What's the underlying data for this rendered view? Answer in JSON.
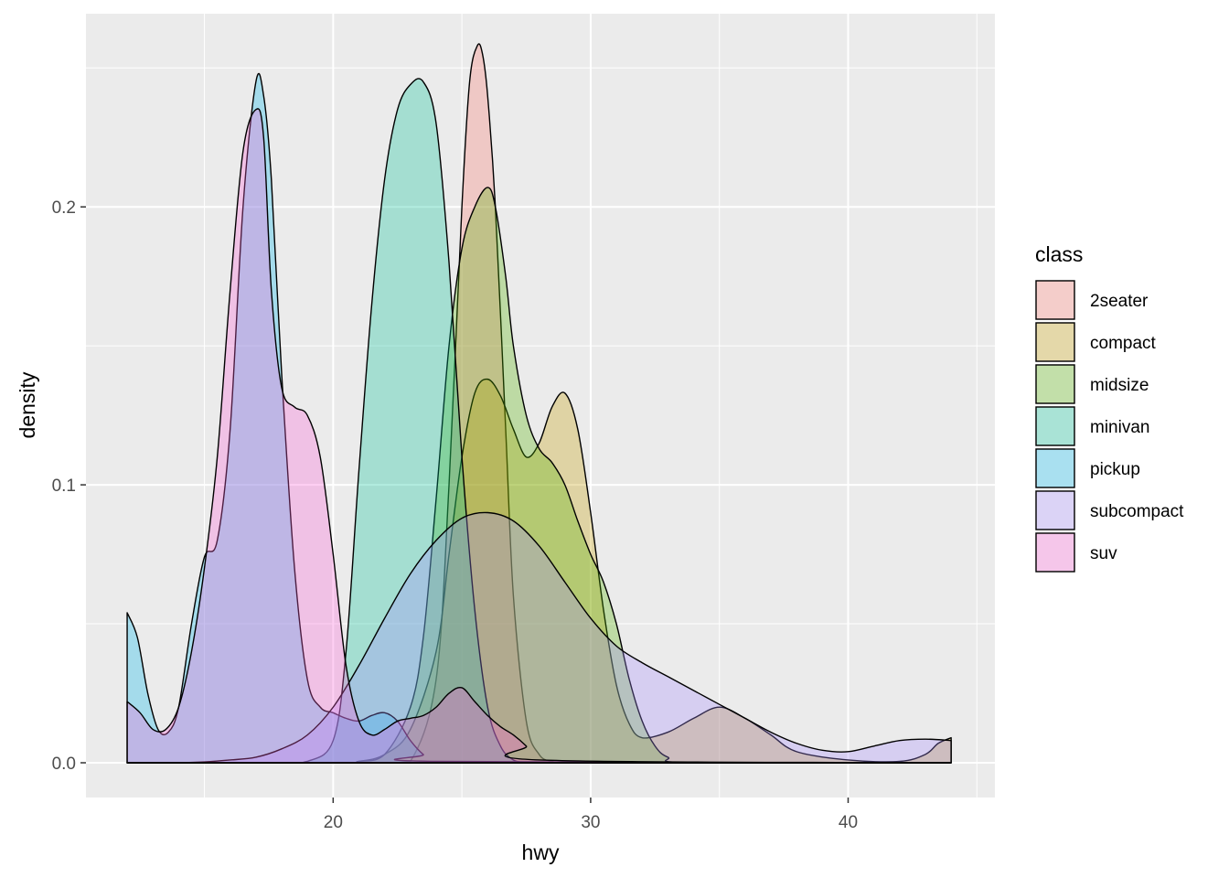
{
  "chart_data": {
    "type": "area",
    "xlabel": "hwy",
    "ylabel": "density",
    "xlim": [
      10.4,
      45.7
    ],
    "ylim": [
      -0.0125,
      0.2695
    ],
    "x_ticks": [
      20,
      30,
      40
    ],
    "x_tick_labels": [
      "20",
      "30",
      "40"
    ],
    "y_ticks": [
      0.0,
      0.1,
      0.2
    ],
    "y_tick_labels": [
      "0.0",
      "0.1",
      "0.2"
    ],
    "grid": true,
    "legend": {
      "title": "class",
      "position": "right"
    },
    "series": [
      {
        "name": "2seater",
        "color": "#F8766D",
        "x": [
          12,
          13,
          14,
          15,
          16,
          17,
          18,
          19,
          20,
          21,
          22,
          23,
          24,
          24.5,
          25,
          25.3,
          25.6,
          25.8,
          26,
          26.3,
          26.7,
          27,
          27.5,
          28,
          28.5,
          29,
          30,
          44
        ],
        "y": [
          0,
          0,
          0,
          0,
          0,
          0,
          0,
          0,
          0,
          0,
          0,
          0.0005,
          0.03,
          0.1,
          0.2,
          0.245,
          0.258,
          0.255,
          0.24,
          0.2,
          0.12,
          0.06,
          0.015,
          0.003,
          0.0005,
          0,
          0,
          0
        ]
      },
      {
        "name": "compact",
        "color": "#C49A00",
        "x": [
          12,
          20,
          21,
          22,
          23,
          24,
          24.5,
          25,
          25.5,
          26,
          26.5,
          27,
          27.5,
          28,
          28.5,
          29,
          29.5,
          30,
          30.5,
          31,
          31.5,
          32,
          33,
          34,
          35,
          36,
          37,
          38,
          40,
          42,
          43,
          43.5,
          44
        ],
        "y": [
          0,
          0,
          0.0005,
          0.003,
          0.012,
          0.04,
          0.075,
          0.11,
          0.133,
          0.138,
          0.132,
          0.12,
          0.11,
          0.115,
          0.128,
          0.133,
          0.12,
          0.09,
          0.055,
          0.028,
          0.014,
          0.009,
          0.011,
          0.016,
          0.02,
          0.016,
          0.01,
          0.004,
          0.001,
          0.0005,
          0.003,
          0.007,
          0.009
        ]
      },
      {
        "name": "midsize",
        "color": "#53B400",
        "x": [
          12,
          20,
          21,
          22,
          23,
          23.5,
          24,
          24.5,
          25,
          25.5,
          26,
          26.3,
          26.7,
          27,
          27.5,
          28,
          28.5,
          29,
          29.5,
          30,
          30.5,
          31,
          31.5,
          32,
          32.5,
          33,
          34,
          44
        ],
        "y": [
          0,
          0,
          0.0005,
          0.003,
          0.02,
          0.045,
          0.095,
          0.15,
          0.185,
          0.2,
          0.207,
          0.2,
          0.175,
          0.15,
          0.125,
          0.113,
          0.108,
          0.1,
          0.087,
          0.075,
          0.065,
          0.05,
          0.03,
          0.015,
          0.006,
          0.002,
          0,
          0
        ]
      },
      {
        "name": "minivan",
        "color": "#00C094",
        "x": [
          12,
          18,
          19,
          20,
          20.5,
          21,
          21.5,
          22,
          22.5,
          23,
          23.5,
          24,
          24.5,
          25,
          25.5,
          26,
          26.5,
          27,
          27.5,
          28,
          29,
          44
        ],
        "y": [
          0,
          0,
          0.0005,
          0.008,
          0.04,
          0.105,
          0.165,
          0.21,
          0.235,
          0.244,
          0.245,
          0.23,
          0.18,
          0.11,
          0.055,
          0.02,
          0.006,
          0.001,
          0.0002,
          0,
          0,
          0
        ]
      },
      {
        "name": "pickup",
        "color": "#00B6EB",
        "x": [
          12,
          12.4,
          12.8,
          13.2,
          13.6,
          14,
          14.5,
          15,
          15.5,
          16,
          16.5,
          17,
          17.3,
          17.6,
          18,
          18.5,
          19,
          19.5,
          20,
          20.5,
          21,
          21.5,
          22,
          22.5,
          23,
          23.5,
          24,
          44
        ],
        "y": [
          0.054,
          0.045,
          0.025,
          0.012,
          0.011,
          0.02,
          0.05,
          0.074,
          0.08,
          0.12,
          0.2,
          0.245,
          0.24,
          0.21,
          0.14,
          0.07,
          0.03,
          0.02,
          0.018,
          0.016,
          0.015,
          0.017,
          0.018,
          0.015,
          0.008,
          0.003,
          0.0005,
          0
        ]
      },
      {
        "name": "subcompact",
        "color": "#A58AFF",
        "x": [
          12,
          13,
          14,
          15,
          16,
          17,
          18,
          19,
          20,
          21,
          22,
          23,
          24,
          25,
          26,
          27,
          28,
          29,
          30,
          31,
          32,
          33,
          34,
          35,
          36,
          37,
          38,
          39,
          40,
          41,
          42,
          43,
          44
        ],
        "y": [
          0,
          0,
          0,
          0.0003,
          0.001,
          0.002,
          0.005,
          0.01,
          0.02,
          0.035,
          0.052,
          0.068,
          0.08,
          0.088,
          0.09,
          0.087,
          0.078,
          0.065,
          0.052,
          0.042,
          0.036,
          0.031,
          0.026,
          0.021,
          0.016,
          0.011,
          0.007,
          0.0045,
          0.004,
          0.006,
          0.008,
          0.0085,
          0.008
        ]
      },
      {
        "name": "suv",
        "color": "#FB61D7",
        "x": [
          12,
          12.5,
          13,
          13.5,
          14,
          14.5,
          15,
          15.5,
          16,
          16.5,
          17,
          17.3,
          17.6,
          18,
          18.5,
          19,
          19.5,
          20,
          20.5,
          21,
          21.5,
          22,
          22.5,
          23,
          23.5,
          24,
          24.5,
          25,
          25.5,
          26,
          26.5,
          27,
          27.5,
          28,
          44
        ],
        "y": [
          0.022,
          0.018,
          0.012,
          0.012,
          0.02,
          0.04,
          0.07,
          0.11,
          0.17,
          0.22,
          0.235,
          0.225,
          0.17,
          0.135,
          0.128,
          0.125,
          0.11,
          0.075,
          0.035,
          0.015,
          0.01,
          0.012,
          0.015,
          0.016,
          0.017,
          0.02,
          0.025,
          0.027,
          0.022,
          0.017,
          0.013,
          0.01,
          0.006,
          0.001,
          0
        ]
      }
    ]
  }
}
